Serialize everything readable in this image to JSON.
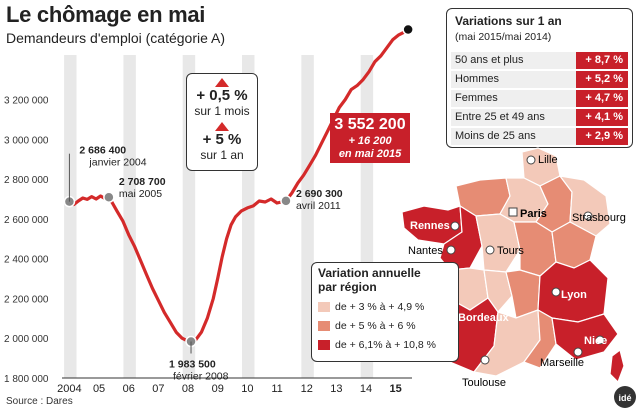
{
  "header": {
    "title": "Le chômage en mai",
    "subtitle": "Demandeurs d'emploi (catégorie A)"
  },
  "source": "Source : Dares",
  "colors": {
    "accent_red": "#c8202a",
    "line_red": "#d42a2a",
    "region_light": "#f3c9b9",
    "region_mid": "#e68c74",
    "region_dark": "#c8202a"
  },
  "chart_data": {
    "type": "line",
    "title": "Le chômage en mai",
    "subtitle": "Demandeurs d'emploi (catégorie A)",
    "y_tick_labels": [
      "1 800 000",
      "2 000 000",
      "2 200 000",
      "2 400 000",
      "2 600 000",
      "2 800 000",
      "3 000 000",
      "3 200 000"
    ],
    "y_ticks": [
      1800000,
      2000000,
      2200000,
      2400000,
      2600000,
      2800000,
      3000000,
      3200000
    ],
    "ylim": [
      1800000,
      3650000
    ],
    "x_tick_labels": [
      "2004",
      "05",
      "06",
      "07",
      "08",
      "09",
      "10",
      "11",
      "12",
      "13",
      "14",
      "15"
    ],
    "x_ticks": [
      2004,
      2005,
      2006,
      2007,
      2008,
      2009,
      2010,
      2011,
      2012,
      2013,
      2014,
      2015
    ],
    "xlim": [
      2003.75,
      2015.55
    ],
    "series": [
      {
        "values": [
          [
            2004.0,
            2686400
          ],
          [
            2004.15,
            2672000
          ],
          [
            2004.3,
            2690000
          ],
          [
            2004.45,
            2705000
          ],
          [
            2004.6,
            2698000
          ],
          [
            2004.75,
            2712000
          ],
          [
            2004.9,
            2700000
          ],
          [
            2005.05,
            2715000
          ],
          [
            2005.2,
            2702000
          ],
          [
            2005.33,
            2708700
          ],
          [
            2005.45,
            2680000
          ],
          [
            2005.6,
            2640000
          ],
          [
            2005.8,
            2590000
          ],
          [
            2006.0,
            2520000
          ],
          [
            2006.2,
            2460000
          ],
          [
            2006.4,
            2390000
          ],
          [
            2006.6,
            2320000
          ],
          [
            2006.8,
            2250000
          ],
          [
            2007.0,
            2190000
          ],
          [
            2007.2,
            2130000
          ],
          [
            2007.4,
            2080000
          ],
          [
            2007.6,
            2030000
          ],
          [
            2007.8,
            2000000
          ],
          [
            2008.0,
            1985000
          ],
          [
            2008.1,
            1983500
          ],
          [
            2008.25,
            1990000
          ],
          [
            2008.45,
            2030000
          ],
          [
            2008.65,
            2100000
          ],
          [
            2008.85,
            2200000
          ],
          [
            2009.0,
            2300000
          ],
          [
            2009.15,
            2410000
          ],
          [
            2009.3,
            2500000
          ],
          [
            2009.45,
            2570000
          ],
          [
            2009.6,
            2610000
          ],
          [
            2009.8,
            2640000
          ],
          [
            2010.0,
            2655000
          ],
          [
            2010.2,
            2665000
          ],
          [
            2010.4,
            2690000
          ],
          [
            2010.6,
            2685000
          ],
          [
            2010.8,
            2700000
          ],
          [
            2011.0,
            2680000
          ],
          [
            2011.15,
            2685000
          ],
          [
            2011.3,
            2690300
          ],
          [
            2011.5,
            2730000
          ],
          [
            2011.7,
            2780000
          ],
          [
            2011.9,
            2820000
          ],
          [
            2012.1,
            2870000
          ],
          [
            2012.3,
            2920000
          ],
          [
            2012.5,
            2980000
          ],
          [
            2012.7,
            3040000
          ],
          [
            2012.9,
            3100000
          ],
          [
            2013.1,
            3160000
          ],
          [
            2013.3,
            3200000
          ],
          [
            2013.5,
            3250000
          ],
          [
            2013.7,
            3270000
          ],
          [
            2013.9,
            3300000
          ],
          [
            2014.1,
            3340000
          ],
          [
            2014.3,
            3390000
          ],
          [
            2014.5,
            3420000
          ],
          [
            2014.7,
            3460000
          ],
          [
            2014.9,
            3500000
          ],
          [
            2015.1,
            3525000
          ],
          [
            2015.3,
            3540000
          ],
          [
            2015.42,
            3552200
          ]
        ]
      }
    ],
    "annotations": [
      {
        "value": "2 686 400",
        "label": "janvier 2004",
        "x": 2004.0,
        "y": 2686400
      },
      {
        "value": "2 708 700",
        "label": "mai 2005",
        "x": 2005.33,
        "y": 2708700
      },
      {
        "value": "1 983 500",
        "label": "février 2008",
        "x": 2008.1,
        "y": 1983500
      },
      {
        "value": "2 690 300",
        "label": "avril 2011",
        "x": 2011.3,
        "y": 2690300
      },
      {
        "value": "3 552 200",
        "label": "mai 2015",
        "x": 2015.42,
        "y": 3552200
      }
    ],
    "grid": false
  },
  "callout": {
    "month_change": "+ 0,5 %",
    "month_label": "sur 1 mois",
    "year_change": "+ 5 %",
    "year_label": "sur 1 an"
  },
  "latest": {
    "value": "3 552 200",
    "change": "+ 16 200",
    "label": "en mai 2015"
  },
  "variations": {
    "title": "Variations sur 1 an",
    "subtitle": "(mai 2015/mai 2014)",
    "rows": [
      {
        "label": "50 ans et plus",
        "value": "+ 8,7 %"
      },
      {
        "label": "Hommes",
        "value": "+ 5,2 %"
      },
      {
        "label": "Femmes",
        "value": "+ 4,7 %"
      },
      {
        "label": "Entre 25 et 49 ans",
        "value": "+ 4,1 %"
      },
      {
        "label": "Moins de 25 ans",
        "value": "+ 2,9 %"
      }
    ]
  },
  "map": {
    "cities": [
      "Lille",
      "Paris",
      "Strasbourg",
      "Rennes",
      "Nantes",
      "Tours",
      "Lyon",
      "Bordeaux",
      "Nice",
      "Marseille",
      "Toulouse"
    ],
    "legend": {
      "title": "Variation annuelle par région",
      "items": [
        {
          "label": "de + 3 % à + 4,9 %",
          "color": "#f3c9b9"
        },
        {
          "label": "de + 5 % à + 6 %",
          "color": "#e68c74"
        },
        {
          "label": "de + 6,1% à + 10,8 %",
          "color": "#c8202a"
        }
      ]
    }
  },
  "logo": "idé"
}
